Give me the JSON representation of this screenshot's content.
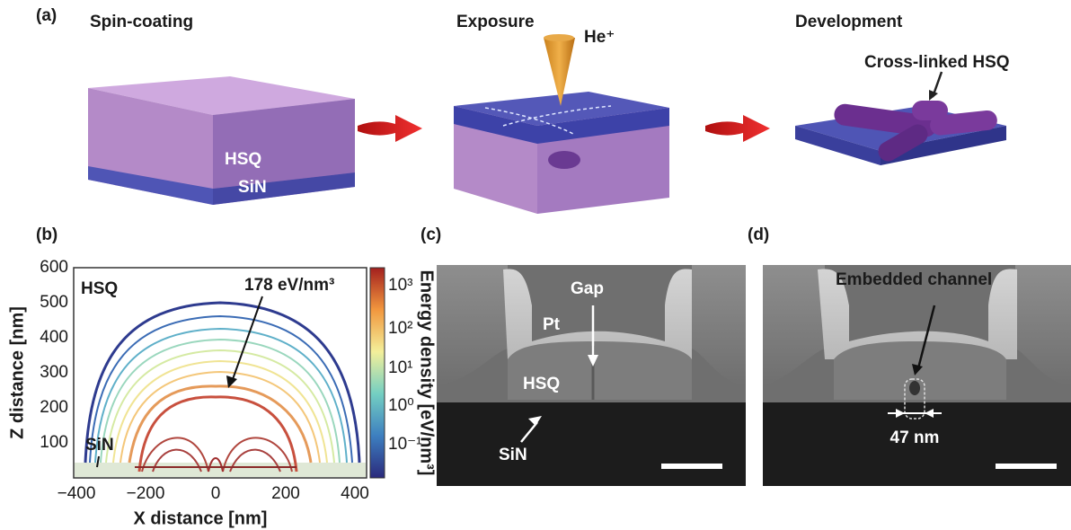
{
  "panel_a": {
    "label": "(a)",
    "steps": [
      {
        "title": "Spin-coating",
        "labels": [
          "HSQ",
          "SiN"
        ]
      },
      {
        "title": "Exposure",
        "labels": [
          "He⁺"
        ]
      },
      {
        "title": "Development",
        "labels": [
          "Cross-linked HSQ"
        ]
      }
    ]
  },
  "panel_b": {
    "label": "(b)",
    "xlabel": "X distance [nm]",
    "ylabel": "Z distance [nm]",
    "colorbar_label": "Energy density [eV/nm³]",
    "xticks": [
      "−400",
      "−200",
      "0",
      "200",
      "400"
    ],
    "yticks": [
      "100",
      "200",
      "300",
      "400",
      "500",
      "600"
    ],
    "colorbar_ticks": [
      "10³",
      "10²",
      "10¹",
      "10⁰",
      "10⁻¹"
    ],
    "annotations": [
      "HSQ",
      "SiN",
      "178 eV/nm³"
    ]
  },
  "panel_c": {
    "label": "(c)",
    "annotations": [
      "Gap",
      "Pt",
      "HSQ",
      "SiN"
    ]
  },
  "panel_d": {
    "label": "(d)",
    "annotations": [
      "Embedded channel",
      "47 nm"
    ]
  }
}
